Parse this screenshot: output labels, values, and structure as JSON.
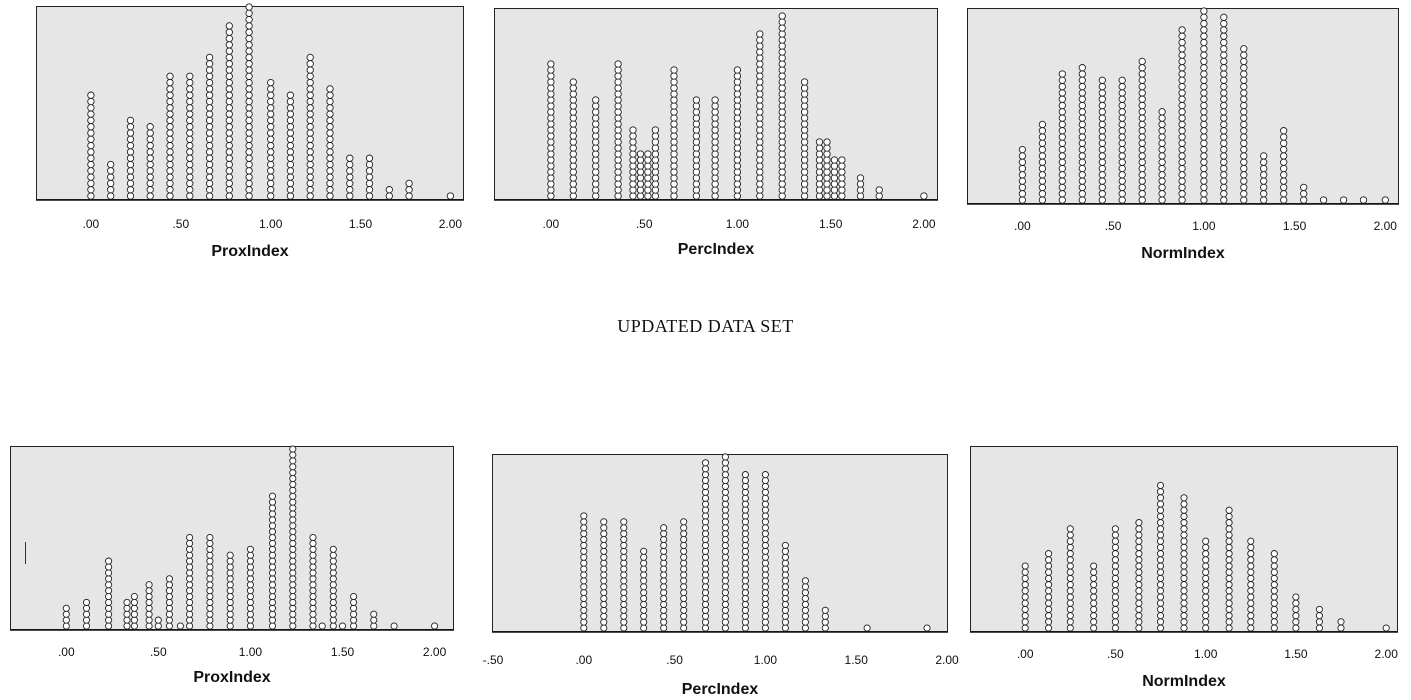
{
  "section_heading": "UPDATED DATA SET",
  "colors": {
    "plot_background": "#e6e6e6",
    "marker_fill": "#ffffff",
    "marker_stroke": "#222222",
    "axis": "#111111"
  },
  "chart_data": [
    {
      "type": "dot-plot",
      "group": "original",
      "xlabel": "ProxIndex",
      "xlim": [
        -0.3,
        2.07
      ],
      "xticks": [
        0,
        0.5,
        1.0,
        1.5,
        2.0
      ],
      "xtick_labels": [
        ".00",
        ".50",
        "1.00",
        "1.50",
        "2.00"
      ],
      "grid": false,
      "x": [
        0.0,
        0.11,
        0.22,
        0.33,
        0.44,
        0.55,
        0.66,
        0.77,
        0.88,
        1.0,
        1.11,
        1.22,
        1.33,
        1.44,
        1.55,
        1.66,
        1.77,
        2.0
      ],
      "counts": [
        16,
        5,
        12,
        11,
        19,
        19,
        22,
        27,
        30,
        18,
        16,
        22,
        17,
        6,
        6,
        1,
        2,
        0
      ]
    },
    {
      "type": "dot-plot",
      "group": "original",
      "xlabel": "PercIndex",
      "xlim": [
        -0.3,
        2.07
      ],
      "xticks": [
        0,
        0.5,
        1.0,
        1.5,
        2.0
      ],
      "xtick_labels": [
        ".00",
        ".50",
        "1.00",
        "1.50",
        "2.00"
      ],
      "grid": false,
      "x": [
        0.0,
        0.12,
        0.24,
        0.36,
        0.44,
        0.48,
        0.52,
        0.56,
        0.66,
        0.78,
        0.88,
        1.0,
        1.12,
        1.24,
        1.36,
        1.44,
        1.48,
        1.52,
        1.56,
        1.66,
        1.76,
        2.0
      ],
      "counts": [
        22,
        19,
        16,
        22,
        11,
        7,
        7,
        11,
        21,
        16,
        16,
        21,
        27,
        30,
        19,
        9,
        9,
        6,
        6,
        3,
        1,
        0
      ]
    },
    {
      "type": "dot-plot",
      "group": "original",
      "xlabel": "NormIndex",
      "xlim": [
        -0.3,
        2.07
      ],
      "xticks": [
        0,
        0.5,
        1.0,
        1.5,
        2.0
      ],
      "xtick_labels": [
        ".00",
        ".50",
        "1.00",
        "1.50",
        "2.00"
      ],
      "grid": false,
      "x": [
        0.0,
        0.11,
        0.22,
        0.33,
        0.44,
        0.55,
        0.66,
        0.77,
        0.88,
        1.0,
        1.11,
        1.22,
        1.33,
        1.44,
        1.55,
        1.66,
        1.77,
        1.88,
        2.0
      ],
      "counts": [
        8,
        12,
        20,
        21,
        19,
        19,
        22,
        14,
        27,
        30,
        29,
        24,
        7,
        11,
        2,
        0,
        0,
        0,
        0
      ]
    },
    {
      "type": "dot-plot",
      "group": "updated",
      "xlabel": "ProxIndex",
      "xlim": [
        -0.3,
        2.1
      ],
      "xticks": [
        0,
        0.5,
        1.0,
        1.5,
        2.0
      ],
      "xtick_labels": [
        ".00",
        ".50",
        "1.00",
        "1.50",
        "2.00"
      ],
      "grid": false,
      "x": [
        0.0,
        0.11,
        0.23,
        0.33,
        0.37,
        0.45,
        0.5,
        0.56,
        0.62,
        0.67,
        0.78,
        0.89,
        1.0,
        1.12,
        1.23,
        1.34,
        1.39,
        1.45,
        1.5,
        1.56,
        1.67,
        1.78,
        2.0
      ],
      "counts": [
        3,
        4,
        11,
        4,
        5,
        7,
        1,
        8,
        0,
        15,
        15,
        12,
        13,
        22,
        30,
        15,
        0,
        13,
        0,
        5,
        2,
        0,
        0
      ]
    },
    {
      "type": "dot-plot",
      "group": "updated",
      "xlabel": "PercIndex",
      "xlim": [
        -0.5,
        2.0
      ],
      "xticks": [
        -0.5,
        0,
        0.5,
        1.0,
        1.5,
        2.0
      ],
      "xtick_labels": [
        "-.50",
        ".00",
        ".50",
        "1.00",
        "1.50",
        "2.00"
      ],
      "grid": false,
      "x": [
        0.0,
        0.11,
        0.22,
        0.33,
        0.44,
        0.55,
        0.67,
        0.78,
        0.89,
        1.0,
        1.11,
        1.22,
        1.33,
        1.56,
        1.89
      ],
      "counts": [
        19,
        18,
        18,
        13,
        17,
        18,
        28,
        29,
        26,
        26,
        14,
        8,
        3,
        0,
        0
      ]
    },
    {
      "type": "dot-plot",
      "group": "updated",
      "xlabel": "NormIndex",
      "xlim": [
        -0.3,
        2.06
      ],
      "xticks": [
        0,
        0.5,
        1.0,
        1.5,
        2.0
      ],
      "xtick_labels": [
        ".00",
        ".50",
        "1.00",
        "1.50",
        "2.00"
      ],
      "grid": false,
      "x": [
        0.0,
        0.13,
        0.25,
        0.38,
        0.5,
        0.63,
        0.75,
        0.88,
        1.0,
        1.13,
        1.25,
        1.38,
        1.5,
        1.63,
        1.75,
        2.0
      ],
      "counts": [
        10,
        12,
        16,
        10,
        16,
        17,
        23,
        21,
        14,
        19,
        14,
        12,
        5,
        3,
        1,
        0
      ]
    }
  ]
}
